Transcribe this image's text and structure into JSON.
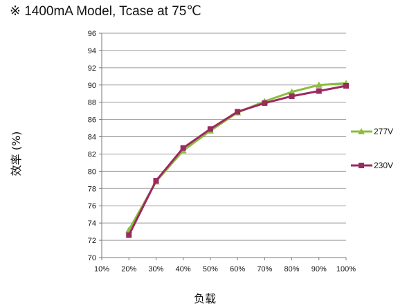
{
  "title": "※ 1400mA Model, Tcase at 75℃",
  "ylabel": "效率 (%)",
  "xlabel": "负载",
  "chart_data": {
    "type": "line",
    "title": "※ 1400mA Model, Tcase at 75℃",
    "xlabel": "负载",
    "ylabel": "效率 (%)",
    "categories": [
      "10%",
      "20%",
      "30%",
      "40%",
      "50%",
      "60%",
      "70%",
      "80%",
      "90%",
      "100%"
    ],
    "x": [
      10,
      20,
      30,
      40,
      50,
      60,
      70,
      80,
      90,
      100
    ],
    "xlim": [
      10,
      100
    ],
    "ylim": [
      70,
      96
    ],
    "yticks": [
      70,
      72,
      74,
      76,
      78,
      80,
      82,
      84,
      86,
      88,
      90,
      92,
      94,
      96
    ],
    "grid": "horizontal",
    "legend": "right",
    "series": [
      {
        "name": "277V",
        "color": "#8cbd3f",
        "marker": "triangle",
        "x": [
          20,
          30,
          40,
          50,
          60,
          70,
          80,
          90,
          100
        ],
        "values": [
          73.2,
          78.8,
          82.4,
          84.7,
          86.8,
          88.1,
          89.2,
          90.0,
          90.2
        ]
      },
      {
        "name": "230V",
        "color": "#9b2a5e",
        "marker": "square",
        "x": [
          20,
          30,
          40,
          50,
          60,
          70,
          80,
          90,
          100
        ],
        "values": [
          72.6,
          78.9,
          82.7,
          84.9,
          86.9,
          87.9,
          88.7,
          89.3,
          89.9
        ]
      }
    ]
  }
}
